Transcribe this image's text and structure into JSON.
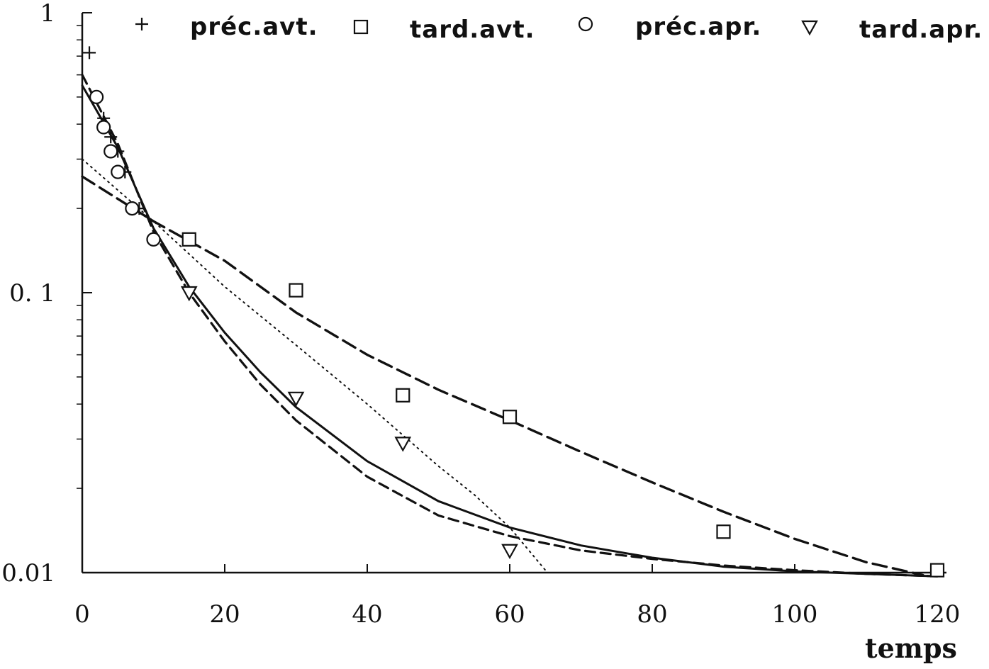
{
  "chart_data": {
    "type": "scatter",
    "title": "",
    "xlabel": "temps",
    "ylabel": "",
    "xlim": [
      0,
      120
    ],
    "ylim": [
      0.01,
      1
    ],
    "yscale": "log",
    "grid": false,
    "legend_position": "top",
    "x_ticks": [
      0,
      20,
      40,
      60,
      80,
      100,
      120
    ],
    "x_tick_labels": [
      "0",
      "20",
      "40",
      "60",
      "80",
      "100",
      "120"
    ],
    "y_ticks": [
      0.01,
      0.1,
      1
    ],
    "y_tick_labels": [
      "0.01",
      "0. 1",
      "1"
    ],
    "series": [
      {
        "name": "préc.avt.",
        "marker": "plus",
        "points": [
          [
            1,
            0.72
          ],
          [
            2,
            0.5
          ],
          [
            3,
            0.42
          ],
          [
            4,
            0.36
          ],
          [
            5,
            0.32
          ],
          [
            6,
            0.27
          ],
          [
            8,
            0.2
          ]
        ]
      },
      {
        "name": "tard.avt.",
        "marker": "square",
        "points": [
          [
            15,
            0.155
          ],
          [
            30,
            0.102
          ],
          [
            45,
            0.043
          ],
          [
            60,
            0.036
          ],
          [
            90,
            0.014
          ],
          [
            120,
            0.0102
          ]
        ]
      },
      {
        "name": "préc.apr.",
        "marker": "circle",
        "points": [
          [
            2,
            0.5
          ],
          [
            3,
            0.39
          ],
          [
            4,
            0.32
          ],
          [
            5,
            0.27
          ],
          [
            7,
            0.2
          ],
          [
            10,
            0.155
          ]
        ]
      },
      {
        "name": "tard.apr.",
        "marker": "triangle-down",
        "points": [
          [
            15,
            0.1
          ],
          [
            30,
            0.042
          ],
          [
            45,
            0.029
          ],
          [
            60,
            0.012
          ]
        ]
      }
    ],
    "fit_curves": [
      {
        "style": "solid",
        "points": [
          [
            0,
            0.55
          ],
          [
            5,
            0.33
          ],
          [
            10,
            0.17
          ],
          [
            15,
            0.105
          ],
          [
            20,
            0.072
          ],
          [
            25,
            0.052
          ],
          [
            30,
            0.039
          ],
          [
            40,
            0.025
          ],
          [
            50,
            0.018
          ],
          [
            60,
            0.0145
          ],
          [
            70,
            0.0125
          ],
          [
            80,
            0.0113
          ],
          [
            90,
            0.0105
          ],
          [
            100,
            0.0101
          ],
          [
            110,
            0.0099
          ],
          [
            120,
            0.0097
          ]
        ]
      },
      {
        "style": "dashed-short",
        "points": [
          [
            0,
            0.6
          ],
          [
            5,
            0.34
          ],
          [
            10,
            0.165
          ],
          [
            15,
            0.1
          ],
          [
            20,
            0.067
          ],
          [
            25,
            0.047
          ],
          [
            30,
            0.035
          ],
          [
            40,
            0.022
          ],
          [
            50,
            0.016
          ],
          [
            60,
            0.0135
          ],
          [
            70,
            0.012
          ],
          [
            80,
            0.0112
          ],
          [
            90,
            0.0106
          ],
          [
            100,
            0.0102
          ],
          [
            110,
            0.0099
          ],
          [
            120,
            0.0097
          ]
        ]
      },
      {
        "style": "dashed-long",
        "points": [
          [
            0,
            0.26
          ],
          [
            10,
            0.18
          ],
          [
            20,
            0.13
          ],
          [
            30,
            0.085
          ],
          [
            40,
            0.06
          ],
          [
            50,
            0.045
          ],
          [
            60,
            0.035
          ],
          [
            70,
            0.027
          ],
          [
            80,
            0.021
          ],
          [
            90,
            0.0165
          ],
          [
            100,
            0.0132
          ],
          [
            110,
            0.0109
          ],
          [
            118,
            0.0098
          ]
        ]
      },
      {
        "style": "dotted",
        "points": [
          [
            0,
            0.3
          ],
          [
            10,
            0.18
          ],
          [
            20,
            0.105
          ],
          [
            30,
            0.065
          ],
          [
            40,
            0.04
          ],
          [
            50,
            0.024
          ],
          [
            55,
            0.019
          ],
          [
            60,
            0.0145
          ],
          [
            65,
            0.0102
          ]
        ]
      }
    ]
  }
}
